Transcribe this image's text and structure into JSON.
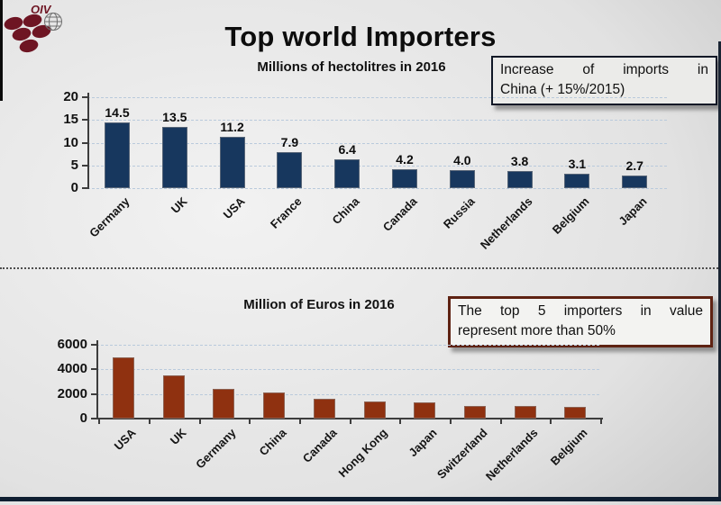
{
  "page": {
    "title": "Top world Importers"
  },
  "logo": {
    "text": "OIV"
  },
  "chart_data": [
    {
      "id": "volume",
      "type": "bar",
      "title": "Millions of hectolitres in 2016",
      "categories": [
        "Germany",
        "UK",
        "USA",
        "France",
        "China",
        "Canada",
        "Russia",
        "Netherlands",
        "Belgium",
        "Japan"
      ],
      "values": [
        14.5,
        13.5,
        11.2,
        7.9,
        6.4,
        4.2,
        4.0,
        3.8,
        3.1,
        2.7
      ],
      "value_labels": [
        "14.5",
        "13.5",
        "11.2",
        "7.9",
        "6.4",
        "4.2",
        "4.0",
        "3.8",
        "3.1",
        "2.7"
      ],
      "ylim": [
        0,
        20
      ],
      "yticks": [
        0,
        5,
        10,
        15,
        20
      ],
      "grid": true,
      "legend": false,
      "bar_color": "#17375E",
      "note_lines": [
        "Increase of imports in",
        "China (+ 15%/2015)"
      ],
      "note_border_color": "#101826"
    },
    {
      "id": "value",
      "type": "bar",
      "title": "Million of Euros in 2016",
      "categories": [
        "USA",
        "UK",
        "Germany",
        "China",
        "Canada",
        "Hong Kong",
        "Japan",
        "Switzerland",
        "Netherlands",
        "Belgium"
      ],
      "values": [
        5000,
        3500,
        2450,
        2100,
        1600,
        1400,
        1350,
        1000,
        1000,
        950
      ],
      "ylim": [
        0,
        6000
      ],
      "yticks": [
        0,
        2000,
        4000,
        6000
      ],
      "grid": true,
      "legend": false,
      "bar_color": "#8F3110",
      "note_lines": [
        "The top 5 importers in value",
        "represent more than 50%"
      ],
      "note_border_color": "#5E2212"
    }
  ]
}
